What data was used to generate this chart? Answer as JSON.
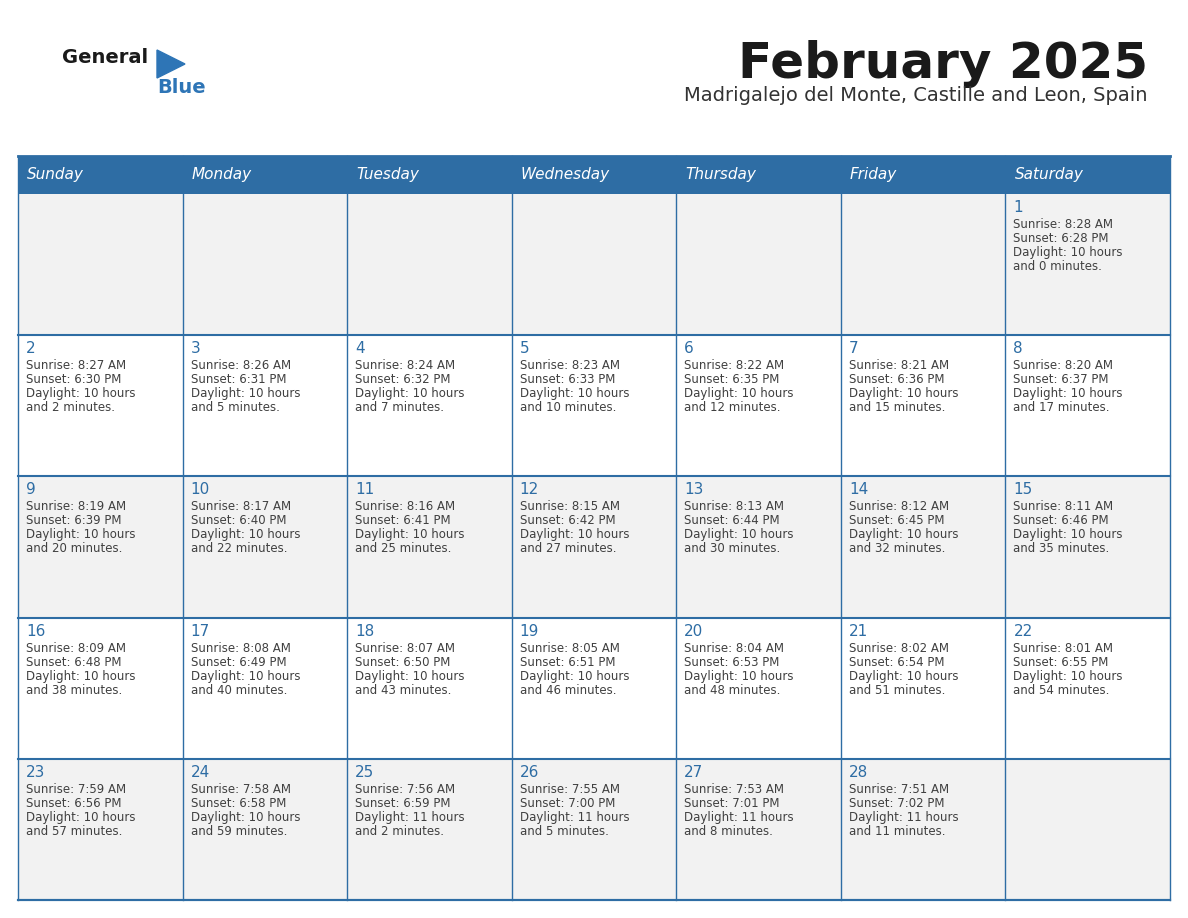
{
  "title": "February 2025",
  "subtitle": "Madrigalejo del Monte, Castille and Leon, Spain",
  "days_of_week": [
    "Sunday",
    "Monday",
    "Tuesday",
    "Wednesday",
    "Thursday",
    "Friday",
    "Saturday"
  ],
  "header_bg": "#2E6DA4",
  "header_text": "#FFFFFF",
  "cell_bg_odd": "#F2F2F2",
  "cell_bg_even": "#FFFFFF",
  "border_color": "#2E6DA4",
  "title_color": "#1a1a1a",
  "subtitle_color": "#333333",
  "day_num_color": "#2E6DA4",
  "text_color": "#404040",
  "logo_general_color": "#1a1a1a",
  "logo_blue_color": "#2E75B6",
  "calendar_data": [
    [
      null,
      null,
      null,
      null,
      null,
      null,
      {
        "day": "1",
        "sunrise": "8:28 AM",
        "sunset": "6:28 PM",
        "daylight": "10 hours",
        "daylight2": "and 0 minutes."
      }
    ],
    [
      {
        "day": "2",
        "sunrise": "8:27 AM",
        "sunset": "6:30 PM",
        "daylight": "10 hours",
        "daylight2": "and 2 minutes."
      },
      {
        "day": "3",
        "sunrise": "8:26 AM",
        "sunset": "6:31 PM",
        "daylight": "10 hours",
        "daylight2": "and 5 minutes."
      },
      {
        "day": "4",
        "sunrise": "8:24 AM",
        "sunset": "6:32 PM",
        "daylight": "10 hours",
        "daylight2": "and 7 minutes."
      },
      {
        "day": "5",
        "sunrise": "8:23 AM",
        "sunset": "6:33 PM",
        "daylight": "10 hours",
        "daylight2": "and 10 minutes."
      },
      {
        "day": "6",
        "sunrise": "8:22 AM",
        "sunset": "6:35 PM",
        "daylight": "10 hours",
        "daylight2": "and 12 minutes."
      },
      {
        "day": "7",
        "sunrise": "8:21 AM",
        "sunset": "6:36 PM",
        "daylight": "10 hours",
        "daylight2": "and 15 minutes."
      },
      {
        "day": "8",
        "sunrise": "8:20 AM",
        "sunset": "6:37 PM",
        "daylight": "10 hours",
        "daylight2": "and 17 minutes."
      }
    ],
    [
      {
        "day": "9",
        "sunrise": "8:19 AM",
        "sunset": "6:39 PM",
        "daylight": "10 hours",
        "daylight2": "and 20 minutes."
      },
      {
        "day": "10",
        "sunrise": "8:17 AM",
        "sunset": "6:40 PM",
        "daylight": "10 hours",
        "daylight2": "and 22 minutes."
      },
      {
        "day": "11",
        "sunrise": "8:16 AM",
        "sunset": "6:41 PM",
        "daylight": "10 hours",
        "daylight2": "and 25 minutes."
      },
      {
        "day": "12",
        "sunrise": "8:15 AM",
        "sunset": "6:42 PM",
        "daylight": "10 hours",
        "daylight2": "and 27 minutes."
      },
      {
        "day": "13",
        "sunrise": "8:13 AM",
        "sunset": "6:44 PM",
        "daylight": "10 hours",
        "daylight2": "and 30 minutes."
      },
      {
        "day": "14",
        "sunrise": "8:12 AM",
        "sunset": "6:45 PM",
        "daylight": "10 hours",
        "daylight2": "and 32 minutes."
      },
      {
        "day": "15",
        "sunrise": "8:11 AM",
        "sunset": "6:46 PM",
        "daylight": "10 hours",
        "daylight2": "and 35 minutes."
      }
    ],
    [
      {
        "day": "16",
        "sunrise": "8:09 AM",
        "sunset": "6:48 PM",
        "daylight": "10 hours",
        "daylight2": "and 38 minutes."
      },
      {
        "day": "17",
        "sunrise": "8:08 AM",
        "sunset": "6:49 PM",
        "daylight": "10 hours",
        "daylight2": "and 40 minutes."
      },
      {
        "day": "18",
        "sunrise": "8:07 AM",
        "sunset": "6:50 PM",
        "daylight": "10 hours",
        "daylight2": "and 43 minutes."
      },
      {
        "day": "19",
        "sunrise": "8:05 AM",
        "sunset": "6:51 PM",
        "daylight": "10 hours",
        "daylight2": "and 46 minutes."
      },
      {
        "day": "20",
        "sunrise": "8:04 AM",
        "sunset": "6:53 PM",
        "daylight": "10 hours",
        "daylight2": "and 48 minutes."
      },
      {
        "day": "21",
        "sunrise": "8:02 AM",
        "sunset": "6:54 PM",
        "daylight": "10 hours",
        "daylight2": "and 51 minutes."
      },
      {
        "day": "22",
        "sunrise": "8:01 AM",
        "sunset": "6:55 PM",
        "daylight": "10 hours",
        "daylight2": "and 54 minutes."
      }
    ],
    [
      {
        "day": "23",
        "sunrise": "7:59 AM",
        "sunset": "6:56 PM",
        "daylight": "10 hours",
        "daylight2": "and 57 minutes."
      },
      {
        "day": "24",
        "sunrise": "7:58 AM",
        "sunset": "6:58 PM",
        "daylight": "10 hours",
        "daylight2": "and 59 minutes."
      },
      {
        "day": "25",
        "sunrise": "7:56 AM",
        "sunset": "6:59 PM",
        "daylight": "11 hours",
        "daylight2": "and 2 minutes."
      },
      {
        "day": "26",
        "sunrise": "7:55 AM",
        "sunset": "7:00 PM",
        "daylight": "11 hours",
        "daylight2": "and 5 minutes."
      },
      {
        "day": "27",
        "sunrise": "7:53 AM",
        "sunset": "7:01 PM",
        "daylight": "11 hours",
        "daylight2": "and 8 minutes."
      },
      {
        "day": "28",
        "sunrise": "7:51 AM",
        "sunset": "7:02 PM",
        "daylight": "11 hours",
        "daylight2": "and 11 minutes."
      },
      null
    ]
  ]
}
